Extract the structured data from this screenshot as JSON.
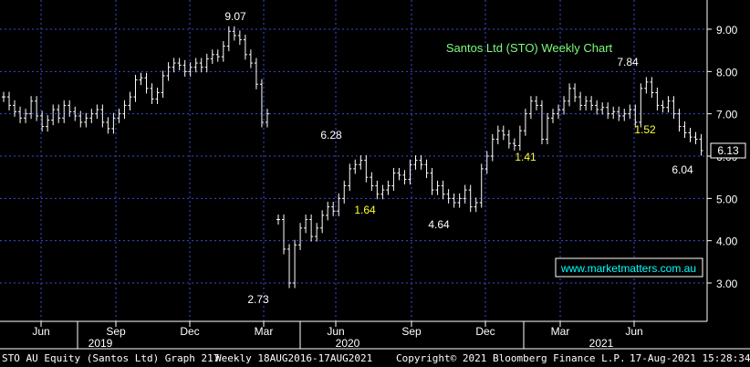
{
  "chart_data": {
    "type": "ohlc",
    "title": "Santos Ltd (STO) Weekly Chart",
    "ylim": [
      2.3,
      9.3
    ],
    "y_ticks": [
      "9.00",
      "8.00",
      "7.00",
      "6.00",
      "5.00",
      "4.00",
      "3.00"
    ],
    "y_tick_values": [
      9,
      8,
      7,
      6,
      5,
      4,
      3
    ],
    "last_price": "6.13",
    "x_month_labels": [
      "Jun",
      "Sep",
      "Dec",
      "Mar",
      "Jun",
      "Sep",
      "Dec",
      "Mar",
      "Jun"
    ],
    "x_year_labels": [
      "2019",
      "2020",
      "2021"
    ],
    "watermark": "www.marketmatters.com.au",
    "annotations": [
      {
        "text": "9.07",
        "color": "#ffffff"
      },
      {
        "text": "6.28",
        "color": "#ffffff"
      },
      {
        "text": "7.84",
        "color": "#ffffff"
      },
      {
        "text": "1.64",
        "color": "#ffff33"
      },
      {
        "text": "1.41",
        "color": "#ffff33"
      },
      {
        "text": "1.52",
        "color": "#ffff33"
      },
      {
        "text": "4.64",
        "color": "#ffffff"
      },
      {
        "text": "2.73",
        "color": "#ffffff"
      },
      {
        "text": "6.04",
        "color": "#ffffff"
      }
    ],
    "colors": {
      "bars": "#ffffff",
      "grid": "#3a4bd8",
      "title": "#7cfc7c",
      "highlight": "#ffff33",
      "watermark": "#00ffff"
    },
    "series": [
      {
        "values": [
          7.4,
          7.2,
          7.05,
          6.9,
          7.0,
          7.3,
          6.95,
          6.7,
          6.85,
          7.1,
          6.9,
          7.2,
          7.05,
          6.95,
          6.8,
          6.9,
          7.0,
          7.1,
          6.8,
          6.65,
          6.9,
          7.0,
          7.2,
          7.4,
          7.8,
          7.85,
          7.6,
          7.35,
          7.5,
          7.9,
          8.1,
          8.2,
          8.15,
          8.0,
          8.1,
          8.2,
          8.1,
          8.3,
          8.4,
          8.35,
          8.6,
          8.95,
          8.85,
          8.75,
          8.4,
          8.2,
          7.7,
          6.8,
          7.0,
          null,
          4.5,
          3.8,
          3.0,
          3.9,
          4.3,
          4.5,
          4.1,
          4.3,
          4.6,
          4.8,
          4.7,
          5.0,
          5.3,
          5.7,
          5.8,
          5.9,
          5.5,
          5.3,
          5.1,
          5.2,
          5.3,
          5.6,
          5.55,
          5.45,
          5.8,
          5.9,
          5.8,
          5.6,
          5.2,
          5.3,
          5.1,
          5.0,
          4.9,
          5.0,
          5.2,
          4.8,
          4.9,
          5.7,
          6.0,
          6.4,
          6.6,
          6.5,
          6.3,
          6.25,
          6.6,
          7.0,
          7.3,
          7.2,
          6.4,
          6.9,
          7.0,
          7.1,
          7.3,
          7.6,
          7.4,
          7.2,
          7.3,
          7.2,
          7.1,
          7.15,
          7.0,
          7.05,
          6.95,
          7.0,
          7.1,
          6.8,
          7.6,
          7.75,
          7.5,
          7.2,
          7.15,
          7.3,
          7.0,
          6.7,
          6.55,
          6.45,
          6.4,
          6.13
        ]
      }
    ]
  },
  "footer": {
    "left": "STO AU Equity (Santos Ltd) Graph 217",
    "middle": "Weekly 18AUG2016-17AUG2021",
    "copyright": "Copyright© 2021 Bloomberg Finance L.P.",
    "timestamp": "17-Aug-2021 15:28:34"
  }
}
